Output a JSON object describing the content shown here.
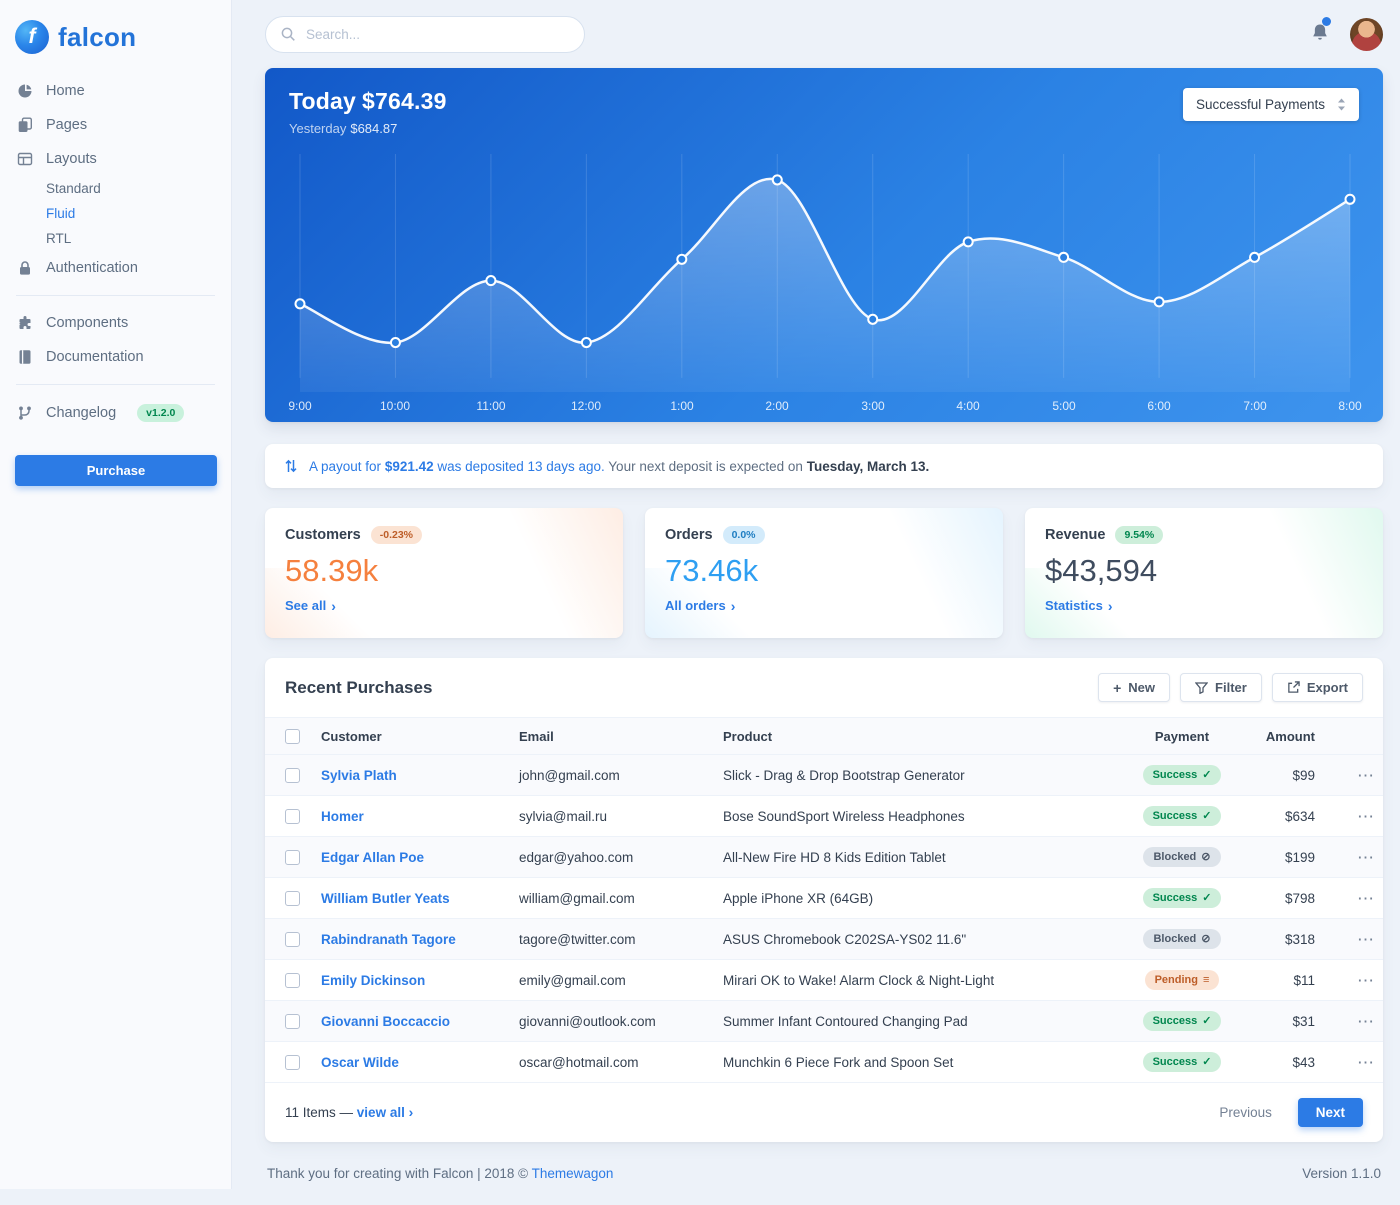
{
  "brand": {
    "name": "falcon"
  },
  "topbar": {
    "search_placeholder": "Search..."
  },
  "sidebar": {
    "home": "Home",
    "pages": "Pages",
    "layouts": "Layouts",
    "layouts_children": {
      "standard": "Standard",
      "fluid": "Fluid",
      "rtl": "RTL"
    },
    "authentication": "Authentication",
    "components": "Components",
    "documentation": "Documentation",
    "changelog": "Changelog",
    "changelog_badge": "v1.2.0",
    "purchase": "Purchase"
  },
  "chart_card": {
    "today_label": "Today",
    "today_value": "$764.39",
    "yesterday_label": "Yesterday",
    "yesterday_value": "$684.87",
    "select_value": "Successful Payments"
  },
  "chart_data": {
    "type": "line",
    "title": "Successful Payments - Today",
    "x": [
      "9:00",
      "10:00",
      "11:00",
      "12:00",
      "1:00",
      "2:00",
      "3:00",
      "4:00",
      "5:00",
      "6:00",
      "7:00",
      "8:00"
    ],
    "values": [
      32,
      12,
      44,
      12,
      55,
      96,
      24,
      64,
      56,
      33,
      56,
      86
    ],
    "ylim": [
      0,
      100
    ],
    "y_unit": "relative (no y-axis shown)",
    "grid": "vertical",
    "markers": true,
    "legend_position": "none"
  },
  "payout": {
    "notice_prefix": "A payout for",
    "notice_amount": "$921.42",
    "notice_suffix": "was deposited 13 days ago.",
    "followup": "Your next deposit is expected on",
    "date": "Tuesday, March 13."
  },
  "stats": {
    "customers": {
      "title": "Customers",
      "badge": "-0.23%",
      "value": "58.39k",
      "link": "See all"
    },
    "orders": {
      "title": "Orders",
      "badge": "0.0%",
      "value": "73.46k",
      "link": "All orders"
    },
    "revenue": {
      "title": "Revenue",
      "badge": "9.54%",
      "value": "$43,594",
      "link": "Statistics"
    }
  },
  "purchases": {
    "title": "Recent Purchases",
    "buttons": {
      "new": "New",
      "filter": "Filter",
      "export": "Export"
    },
    "columns": [
      "Customer",
      "Email",
      "Product",
      "Payment",
      "Amount"
    ],
    "rows": [
      {
        "customer": "Sylvia Plath",
        "email": "john@gmail.com",
        "product": "Slick - Drag & Drop Bootstrap Generator",
        "payment": "Success",
        "payment_type": "success",
        "amount": "$99"
      },
      {
        "customer": "Homer",
        "email": "sylvia@mail.ru",
        "product": "Bose SoundSport Wireless Headphones",
        "payment": "Success",
        "payment_type": "success",
        "amount": "$634"
      },
      {
        "customer": "Edgar Allan Poe",
        "email": "edgar@yahoo.com",
        "product": "All-New Fire HD 8 Kids Edition Tablet",
        "payment": "Blocked",
        "payment_type": "blocked",
        "amount": "$199"
      },
      {
        "customer": "William Butler Yeats",
        "email": "william@gmail.com",
        "product": "Apple iPhone XR (64GB)",
        "payment": "Success",
        "payment_type": "success",
        "amount": "$798"
      },
      {
        "customer": "Rabindranath Tagore",
        "email": "tagore@twitter.com",
        "product": "ASUS Chromebook C202SA-YS02 11.6\"",
        "payment": "Blocked",
        "payment_type": "blocked",
        "amount": "$318"
      },
      {
        "customer": "Emily Dickinson",
        "email": "emily@gmail.com",
        "product": "Mirari OK to Wake! Alarm Clock & Night-Light",
        "payment": "Pending",
        "payment_type": "pending",
        "amount": "$11"
      },
      {
        "customer": "Giovanni Boccaccio",
        "email": "giovanni@outlook.com",
        "product": "Summer Infant Contoured Changing Pad",
        "payment": "Success",
        "payment_type": "success",
        "amount": "$31"
      },
      {
        "customer": "Oscar Wilde",
        "email": "oscar@hotmail.com",
        "product": "Munchkin 6 Piece Fork and Spoon Set",
        "payment": "Success",
        "payment_type": "success",
        "amount": "$43"
      }
    ],
    "footer": {
      "items_text": "11 Items —",
      "view_all": "view all",
      "previous": "Previous",
      "next": "Next"
    }
  },
  "footer": {
    "thanks": "Thank you for creating with Falcon | 2018 ©",
    "brand_link": "Themewagon",
    "version": "Version 1.1.0"
  },
  "icons": {
    "plus": "+",
    "check": "✓",
    "ban": "⊘",
    "stream": "≡",
    "chevron_right": "›",
    "ellipsis": "⋯"
  }
}
